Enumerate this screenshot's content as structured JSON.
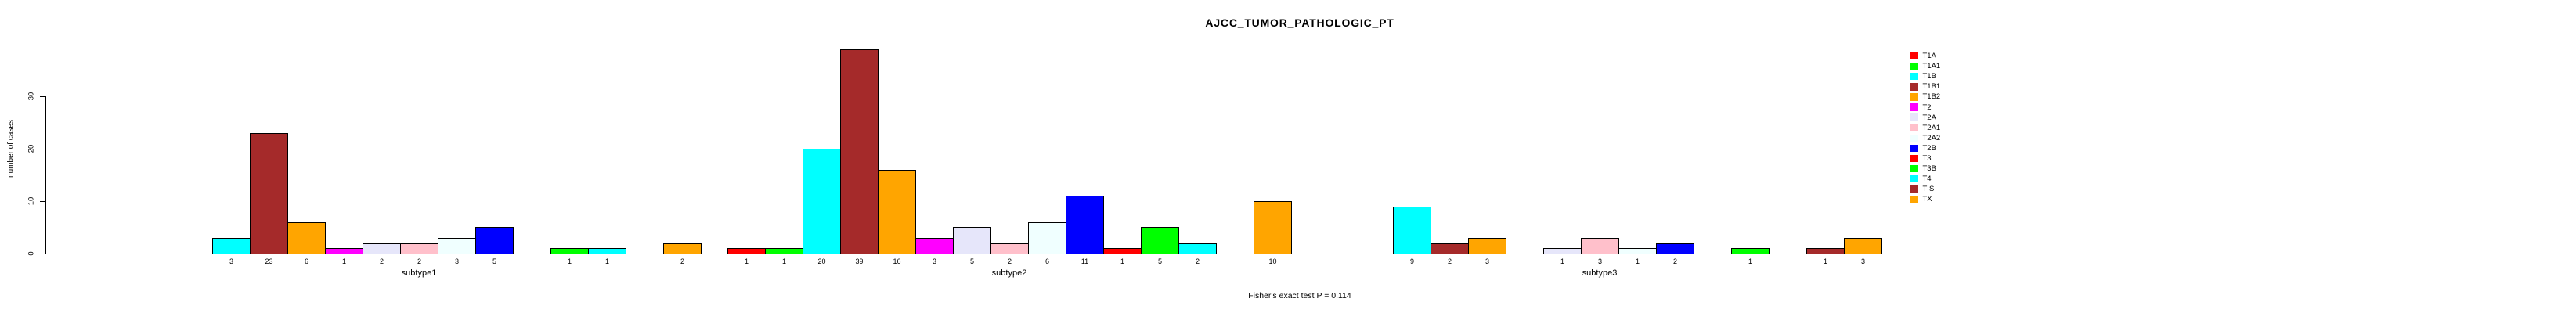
{
  "title": "AJCC_TUMOR_PATHOLOGIC_PT",
  "footnote": "Fisher's exact test P = 0.114",
  "y_axis": {
    "label": "number of cases",
    "ticks": [
      0,
      10,
      20,
      30
    ]
  },
  "legend": {
    "position": "right"
  },
  "chart_data": {
    "type": "bar",
    "title": "AJCC_TUMOR_PATHOLOGIC_PT",
    "ylabel": "number of cases",
    "xlabel": "",
    "ylim": [
      0,
      39
    ],
    "y_ticks": [
      0,
      10,
      20,
      30
    ],
    "grid": false,
    "legend_position": "right",
    "annotation": "Fisher's exact test P = 0.114",
    "categories": [
      "T1A",
      "T1A1",
      "T1B",
      "T1B1",
      "T1B2",
      "T2",
      "T2A",
      "T2A1",
      "T2A2",
      "T2B",
      "T3",
      "T3B",
      "T4",
      "TIS",
      "TX"
    ],
    "palette": [
      "#FF0000",
      "#00FF00",
      "#00FFFF",
      "#A52A2A",
      "#FFA500",
      "#FF00FF",
      "#E6E6FA",
      "#FFC0CB",
      "#F0FFFF",
      "#0000FF",
      "#FF0000",
      "#00FF00",
      "#00FFFF",
      "#A52A2A",
      "#FFA500"
    ],
    "groups": [
      {
        "label": "subtype1",
        "values": [
          0,
          0,
          3,
          23,
          6,
          1,
          2,
          2,
          3,
          5,
          0,
          1,
          1,
          0,
          2
        ]
      },
      {
        "label": "subtype2",
        "values": [
          1,
          1,
          20,
          39,
          16,
          3,
          5,
          2,
          6,
          11,
          1,
          5,
          2,
          0,
          10
        ]
      },
      {
        "label": "subtype3",
        "values": [
          0,
          0,
          9,
          2,
          3,
          0,
          1,
          3,
          1,
          2,
          0,
          1,
          0,
          1,
          3
        ]
      }
    ]
  }
}
